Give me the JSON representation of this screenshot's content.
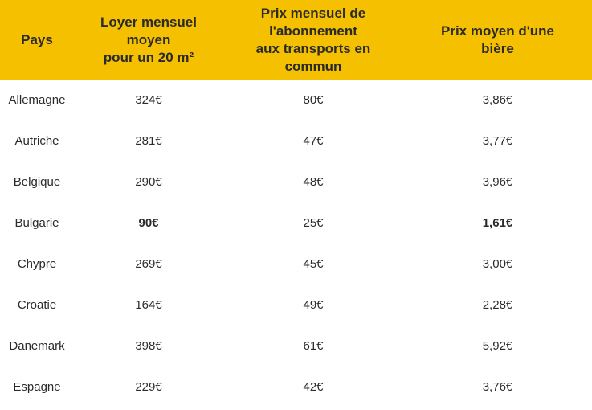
{
  "table": {
    "headers": [
      {
        "line1": "Pays",
        "line2": "",
        "line3": ""
      },
      {
        "line1": "Loyer mensuel",
        "line2": "moyen",
        "line3": "pour un 20 m²"
      },
      {
        "line1": "Prix mensuel de",
        "line2": "l'abonnement",
        "line3": "aux transports en commun"
      },
      {
        "line1": "Prix moyen d'une",
        "line2": "bière",
        "line3": ""
      }
    ],
    "rows": [
      {
        "pays": "Allemagne",
        "loyer": "324€",
        "transport": "80€",
        "biere": "3,86€"
      },
      {
        "pays": "Autriche",
        "loyer": "281€",
        "transport": "47€",
        "biere": "3,77€"
      },
      {
        "pays": "Belgique",
        "loyer": "290€",
        "transport": "48€",
        "biere": "3,96€"
      },
      {
        "pays": "Bulgarie",
        "loyer": "90€",
        "transport": "25€",
        "biere": "1,61€"
      },
      {
        "pays": "Chypre",
        "loyer": "269€",
        "transport": "45€",
        "biere": "3,00€"
      },
      {
        "pays": "Croatie",
        "loyer": "164€",
        "transport": "49€",
        "biere": "2,28€"
      },
      {
        "pays": "Danemark",
        "loyer": "398€",
        "transport": "61€",
        "biere": "5,92€"
      },
      {
        "pays": "Espagne",
        "loyer": "229€",
        "transport": "42€",
        "biere": "3,76€"
      }
    ]
  },
  "colors": {
    "header_background": "#f5c000",
    "row_border": "#222222"
  }
}
